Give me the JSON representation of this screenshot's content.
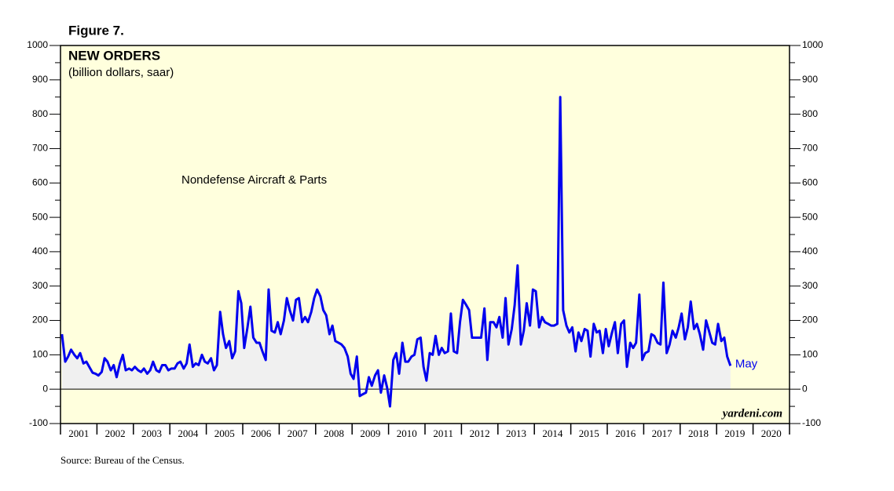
{
  "chart_data": {
    "type": "line",
    "figure_label": "Figure 7.",
    "title": "NEW ORDERS",
    "subtitle": "(billion dollars, saar)",
    "annotation": "May",
    "watermark": "yardeni.com",
    "source": "Source: Bureau of the Census.",
    "xlim": [
      2001,
      2021
    ],
    "xticks": [
      {
        "value": 2001.5,
        "label": "2001"
      },
      {
        "value": 2002.5,
        "label": "2002"
      },
      {
        "value": 2003.5,
        "label": "2003"
      },
      {
        "value": 2004.5,
        "label": "2004"
      },
      {
        "value": 2005.5,
        "label": "2005"
      },
      {
        "value": 2006.5,
        "label": "2006"
      },
      {
        "value": 2007.5,
        "label": "2007"
      },
      {
        "value": 2008.5,
        "label": "2008"
      },
      {
        "value": 2009.5,
        "label": "2009"
      },
      {
        "value": 2010.5,
        "label": "2010"
      },
      {
        "value": 2011.5,
        "label": "2011"
      },
      {
        "value": 2012.5,
        "label": "2012"
      },
      {
        "value": 2013.5,
        "label": "2013"
      },
      {
        "value": 2014.5,
        "label": "2014"
      },
      {
        "value": 2015.5,
        "label": "2015"
      },
      {
        "value": 2016.5,
        "label": "2016"
      },
      {
        "value": 2017.5,
        "label": "2017"
      },
      {
        "value": 2018.5,
        "label": "2018"
      },
      {
        "value": 2019.5,
        "label": "2019"
      },
      {
        "value": 2020.5,
        "label": "2020"
      }
    ],
    "ylim": [
      -100,
      1000
    ],
    "yticks": [
      -100,
      0,
      100,
      200,
      300,
      400,
      500,
      600,
      700,
      800,
      900,
      1000
    ],
    "x": [
      2001.04,
      2001.13,
      2001.21,
      2001.29,
      2001.38,
      2001.46,
      2001.54,
      2001.63,
      2001.71,
      2001.79,
      2001.88,
      2001.96,
      2002.04,
      2002.13,
      2002.21,
      2002.29,
      2002.38,
      2002.46,
      2002.54,
      2002.63,
      2002.71,
      2002.79,
      2002.88,
      2002.96,
      2003.04,
      2003.13,
      2003.21,
      2003.29,
      2003.38,
      2003.46,
      2003.54,
      2003.63,
      2003.71,
      2003.79,
      2003.88,
      2003.96,
      2004.04,
      2004.13,
      2004.21,
      2004.29,
      2004.38,
      2004.46,
      2004.54,
      2004.63,
      2004.71,
      2004.79,
      2004.88,
      2004.96,
      2005.04,
      2005.13,
      2005.21,
      2005.29,
      2005.38,
      2005.46,
      2005.54,
      2005.63,
      2005.71,
      2005.79,
      2005.88,
      2005.96,
      2006.04,
      2006.13,
      2006.21,
      2006.29,
      2006.38,
      2006.46,
      2006.54,
      2006.63,
      2006.71,
      2006.79,
      2006.88,
      2006.96,
      2007.04,
      2007.13,
      2007.21,
      2007.29,
      2007.38,
      2007.46,
      2007.54,
      2007.63,
      2007.71,
      2007.79,
      2007.88,
      2007.96,
      2008.04,
      2008.13,
      2008.21,
      2008.29,
      2008.38,
      2008.46,
      2008.54,
      2008.63,
      2008.71,
      2008.79,
      2008.88,
      2008.96,
      2009.04,
      2009.13,
      2009.21,
      2009.29,
      2009.38,
      2009.46,
      2009.54,
      2009.63,
      2009.71,
      2009.79,
      2009.88,
      2009.96,
      2010.04,
      2010.13,
      2010.21,
      2010.29,
      2010.38,
      2010.46,
      2010.54,
      2010.63,
      2010.71,
      2010.79,
      2010.88,
      2010.96,
      2011.04,
      2011.13,
      2011.21,
      2011.29,
      2011.38,
      2011.46,
      2011.54,
      2011.63,
      2011.71,
      2011.79,
      2011.88,
      2011.96,
      2012.04,
      2012.13,
      2012.21,
      2012.29,
      2012.38,
      2012.46,
      2012.54,
      2012.63,
      2012.71,
      2012.79,
      2012.88,
      2012.96,
      2013.04,
      2013.13,
      2013.21,
      2013.29,
      2013.38,
      2013.46,
      2013.54,
      2013.63,
      2013.71,
      2013.79,
      2013.88,
      2013.96,
      2014.04,
      2014.13,
      2014.21,
      2014.29,
      2014.38,
      2014.46,
      2014.54,
      2014.63,
      2014.71,
      2014.79,
      2014.88,
      2014.96,
      2015.04,
      2015.13,
      2015.21,
      2015.29,
      2015.38,
      2015.46,
      2015.54,
      2015.63,
      2015.71,
      2015.79,
      2015.88,
      2015.96,
      2016.04,
      2016.13,
      2016.21,
      2016.29,
      2016.38,
      2016.46,
      2016.54,
      2016.63,
      2016.71,
      2016.79,
      2016.88,
      2016.96,
      2017.04,
      2017.13,
      2017.21,
      2017.29,
      2017.38,
      2017.46,
      2017.54,
      2017.63,
      2017.71,
      2017.79,
      2017.88,
      2017.96,
      2018.04,
      2018.13,
      2018.21,
      2018.29,
      2018.38,
      2018.46,
      2018.54,
      2018.63,
      2018.71,
      2018.79,
      2018.88,
      2018.96,
      2019.04,
      2019.13,
      2019.21,
      2019.29,
      2019.38
    ],
    "series": [
      {
        "name": "Nondefense Aircraft & Parts",
        "color": "#0000ee",
        "values": [
          160,
          80,
          95,
          115,
          100,
          90,
          105,
          75,
          80,
          65,
          48,
          45,
          40,
          50,
          90,
          80,
          55,
          70,
          35,
          75,
          100,
          55,
          60,
          55,
          65,
          55,
          50,
          60,
          45,
          55,
          80,
          55,
          50,
          70,
          70,
          55,
          60,
          60,
          75,
          80,
          60,
          75,
          130,
          65,
          75,
          70,
          100,
          80,
          75,
          90,
          55,
          70,
          225,
          160,
          120,
          140,
          90,
          110,
          285,
          250,
          120,
          180,
          240,
          150,
          135,
          135,
          110,
          85,
          290,
          170,
          165,
          195,
          160,
          200,
          265,
          230,
          200,
          260,
          265,
          195,
          210,
          195,
          225,
          265,
          290,
          270,
          230,
          215,
          160,
          185,
          140,
          135,
          130,
          120,
          95,
          45,
          30,
          95,
          -20,
          -15,
          -10,
          35,
          10,
          40,
          55,
          -10,
          40,
          5,
          -50,
          85,
          105,
          45,
          135,
          80,
          80,
          95,
          100,
          145,
          150,
          65,
          25,
          105,
          100,
          155,
          100,
          120,
          105,
          110,
          220,
          110,
          105,
          195,
          260,
          245,
          230,
          150,
          150,
          150,
          150,
          235,
          85,
          195,
          195,
          180,
          210,
          150,
          265,
          130,
          175,
          245,
          360,
          130,
          170,
          250,
          185,
          290,
          285,
          180,
          210,
          195,
          190,
          185,
          185,
          190,
          850,
          230,
          185,
          165,
          180,
          110,
          165,
          140,
          175,
          170,
          95,
          190,
          165,
          170,
          105,
          175,
          125,
          165,
          195,
          105,
          190,
          200,
          65,
          135,
          120,
          135,
          275,
          85,
          105,
          110,
          160,
          155,
          135,
          130,
          310,
          105,
          130,
          170,
          150,
          180,
          220,
          145,
          180,
          255,
          175,
          190,
          160,
          115,
          200,
          170,
          135,
          130,
          190,
          140,
          150,
          95,
          68
        ]
      }
    ]
  }
}
